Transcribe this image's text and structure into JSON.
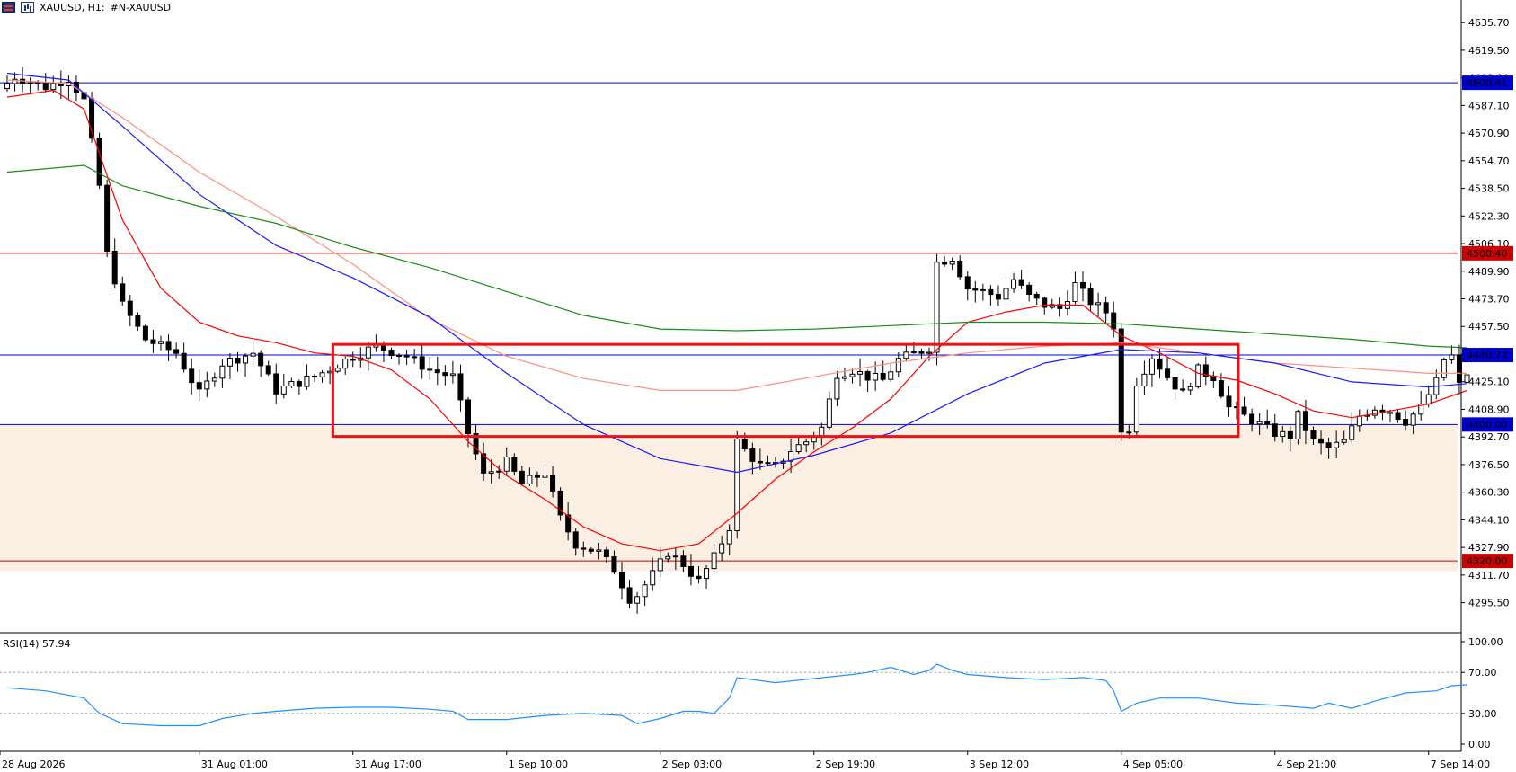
{
  "header": {
    "symbol": "XAUUSD, H1:",
    "description": "#N-XAUUSD"
  },
  "icons": [
    "symbol-flag-icon",
    "chart-type-icon"
  ],
  "colors": {
    "candle_up": "#ffffff",
    "candle_down": "#000000",
    "ma_red": "#ff0000",
    "ma_salmon": "#ff8f7a",
    "ma_blue": "#1a1aff",
    "ma_green": "#1a8c1a",
    "hline_blue": "#0000cc",
    "hline_red": "#cc0000",
    "zone_fill": "#fbeee3",
    "rect_border": "#ee1111",
    "rsi_line": "#1e90ff"
  },
  "price_axis": {
    "min": 4280,
    "max": 4640,
    "ticks": [
      "4635.70",
      "4619.50",
      "4603.30",
      "4587.10",
      "4570.90",
      "4554.70",
      "4538.50",
      "4522.30",
      "4506.10",
      "4489.90",
      "4473.70",
      "4457.50",
      "4441.30",
      "4425.10",
      "4408.90",
      "4392.70",
      "4376.50",
      "4360.30",
      "4344.10",
      "4327.90",
      "4311.70",
      "4295.50"
    ]
  },
  "levels": [
    {
      "price": 4600.41,
      "label": "4600.41",
      "color": "blue"
    },
    {
      "price": 4500.4,
      "label": "4500.40",
      "color": "red"
    },
    {
      "price": 4440.74,
      "label": "4440.74",
      "color": "blue"
    },
    {
      "price": 4400.0,
      "label": "4400.00",
      "color": "blue"
    },
    {
      "price": 4320.0,
      "label": "4320.00",
      "color": "red"
    }
  ],
  "zone": {
    "low": 4314,
    "high": 4400
  },
  "range_box": {
    "start_bar": 48,
    "end_bar": 220,
    "low": 4393,
    "high": 4447
  },
  "time_axis": [
    {
      "label": "28 Aug 2026",
      "bar": 0
    },
    {
      "label": "31 Aug 01:00",
      "bar": 25
    },
    {
      "label": "31 Aug 17:00",
      "bar": 45
    },
    {
      "label": "1 Sep 10:00",
      "bar": 65
    },
    {
      "label": "2 Sep 03:00",
      "bar": 85
    },
    {
      "label": "2 Sep 19:00",
      "bar": 105
    },
    {
      "label": "3 Sep 12:00",
      "bar": 125
    },
    {
      "label": "4 Sep 05:00",
      "bar": 145
    },
    {
      "label": "4 Sep 21:00",
      "bar": 165
    },
    {
      "label": "7 Sep 14:00",
      "bar": 185
    }
  ],
  "rsi": {
    "label": "RSI(14) 57.94",
    "ticks": [
      "100.00",
      "70.00",
      "30.00",
      "0.00"
    ],
    "levels": [
      70,
      30
    ]
  },
  "chart_data": {
    "type": "candlestick",
    "title": "XAUUSD, H1:",
    "ylim": [
      4280,
      4640
    ],
    "key_points": [
      [
        0,
        4600
      ],
      [
        1,
        4604
      ],
      [
        5,
        4598
      ],
      [
        8,
        4603
      ],
      [
        10,
        4590
      ],
      [
        12,
        4540
      ],
      [
        13,
        4500
      ],
      [
        15,
        4470
      ],
      [
        18,
        4450
      ],
      [
        22,
        4442
      ],
      [
        25,
        4418
      ],
      [
        28,
        4436
      ],
      [
        32,
        4442
      ],
      [
        35,
        4420
      ],
      [
        40,
        4428
      ],
      [
        45,
        4440
      ],
      [
        48,
        4446
      ],
      [
        52,
        4440
      ],
      [
        55,
        4432
      ],
      [
        58,
        4428
      ],
      [
        60,
        4395
      ],
      [
        62,
        4370
      ],
      [
        65,
        4378
      ],
      [
        67,
        4365
      ],
      [
        70,
        4372
      ],
      [
        72,
        4345
      ],
      [
        74,
        4330
      ],
      [
        77,
        4325
      ],
      [
        79,
        4315
      ],
      [
        81,
        4298
      ],
      [
        82,
        4300
      ],
      [
        84,
        4312
      ],
      [
        86,
        4325
      ],
      [
        88,
        4318
      ],
      [
        90,
        4308
      ],
      [
        92,
        4322
      ],
      [
        94,
        4340
      ],
      [
        95,
        4390
      ],
      [
        96,
        4385
      ],
      [
        98,
        4376
      ],
      [
        100,
        4375
      ],
      [
        102,
        4385
      ],
      [
        104,
        4390
      ],
      [
        106,
        4398
      ],
      [
        108,
        4430
      ],
      [
        110,
        4432
      ],
      [
        112,
        4428
      ],
      [
        114,
        4426
      ],
      [
        116,
        4438
      ],
      [
        120,
        4445
      ],
      [
        121,
        4495
      ],
      [
        123,
        4498
      ],
      [
        125,
        4480
      ],
      [
        127,
        4478
      ],
      [
        129,
        4475
      ],
      [
        131,
        4485
      ],
      [
        133,
        4475
      ],
      [
        135,
        4470
      ],
      [
        137,
        4468
      ],
      [
        139,
        4482
      ],
      [
        141,
        4472
      ],
      [
        143,
        4466
      ],
      [
        144,
        4458
      ],
      [
        145,
        4395
      ],
      [
        146,
        4398
      ],
      [
        147,
        4425
      ],
      [
        149,
        4440
      ],
      [
        151,
        4428
      ],
      [
        153,
        4418
      ],
      [
        155,
        4432
      ],
      [
        157,
        4428
      ],
      [
        159,
        4410
      ],
      [
        161,
        4405
      ],
      [
        163,
        4400
      ],
      [
        165,
        4395
      ],
      [
        167,
        4393
      ],
      [
        168,
        4405
      ],
      [
        170,
        4390
      ],
      [
        172,
        4386
      ],
      [
        174,
        4390
      ],
      [
        176,
        4405
      ],
      [
        178,
        4410
      ],
      [
        180,
        4408
      ],
      [
        182,
        4402
      ],
      [
        184,
        4410
      ],
      [
        186,
        4425
      ],
      [
        187,
        4438
      ],
      [
        188,
        4440
      ],
      [
        189,
        4423
      ],
      [
        190,
        4430
      ]
    ],
    "moving_averages": [
      {
        "color": "red",
        "points": [
          [
            0,
            4592
          ],
          [
            6,
            4596
          ],
          [
            10,
            4585
          ],
          [
            15,
            4520
          ],
          [
            20,
            4480
          ],
          [
            25,
            4460
          ],
          [
            30,
            4452
          ],
          [
            35,
            4448
          ],
          [
            40,
            4442
          ],
          [
            45,
            4440
          ],
          [
            50,
            4432
          ],
          [
            55,
            4415
          ],
          [
            60,
            4390
          ],
          [
            65,
            4370
          ],
          [
            70,
            4356
          ],
          [
            75,
            4340
          ],
          [
            80,
            4330
          ],
          [
            85,
            4326
          ],
          [
            90,
            4330
          ],
          [
            95,
            4348
          ],
          [
            100,
            4368
          ],
          [
            105,
            4384
          ],
          [
            110,
            4398
          ],
          [
            115,
            4415
          ],
          [
            120,
            4440
          ],
          [
            125,
            4460
          ],
          [
            130,
            4466
          ],
          [
            135,
            4470
          ],
          [
            140,
            4470
          ],
          [
            145,
            4452
          ],
          [
            150,
            4442
          ],
          [
            155,
            4430
          ],
          [
            160,
            4426
          ],
          [
            165,
            4418
          ],
          [
            170,
            4408
          ],
          [
            175,
            4404
          ],
          [
            180,
            4408
          ],
          [
            185,
            4412
          ],
          [
            190,
            4420
          ]
        ]
      },
      {
        "color": "salmon",
        "points": [
          [
            0,
            4602
          ],
          [
            8,
            4600
          ],
          [
            15,
            4580
          ],
          [
            25,
            4548
          ],
          [
            35,
            4522
          ],
          [
            45,
            4494
          ],
          [
            55,
            4462
          ],
          [
            65,
            4440
          ],
          [
            75,
            4427
          ],
          [
            85,
            4420
          ],
          [
            95,
            4420
          ],
          [
            105,
            4428
          ],
          [
            115,
            4436
          ],
          [
            125,
            4442
          ],
          [
            135,
            4446
          ],
          [
            145,
            4448
          ],
          [
            155,
            4442
          ],
          [
            165,
            4436
          ],
          [
            175,
            4433
          ],
          [
            185,
            4430
          ],
          [
            190,
            4430
          ]
        ]
      },
      {
        "color": "blue",
        "points": [
          [
            0,
            4606
          ],
          [
            8,
            4602
          ],
          [
            15,
            4575
          ],
          [
            25,
            4535
          ],
          [
            35,
            4505
          ],
          [
            45,
            4486
          ],
          [
            55,
            4463
          ],
          [
            65,
            4430
          ],
          [
            75,
            4400
          ],
          [
            85,
            4380
          ],
          [
            95,
            4372
          ],
          [
            105,
            4382
          ],
          [
            115,
            4395
          ],
          [
            125,
            4418
          ],
          [
            135,
            4436
          ],
          [
            145,
            4444
          ],
          [
            155,
            4442
          ],
          [
            165,
            4436
          ],
          [
            175,
            4425
          ],
          [
            185,
            4422
          ],
          [
            190,
            4424
          ]
        ]
      },
      {
        "color": "green",
        "points": [
          [
            0,
            4548
          ],
          [
            10,
            4552
          ],
          [
            15,
            4540
          ],
          [
            25,
            4528
          ],
          [
            35,
            4518
          ],
          [
            45,
            4504
          ],
          [
            55,
            4492
          ],
          [
            65,
            4478
          ],
          [
            75,
            4464
          ],
          [
            85,
            4456
          ],
          [
            95,
            4455
          ],
          [
            105,
            4456
          ],
          [
            115,
            4458
          ],
          [
            125,
            4460
          ],
          [
            135,
            4460
          ],
          [
            145,
            4459
          ],
          [
            155,
            4456
          ],
          [
            165,
            4453
          ],
          [
            175,
            4450
          ],
          [
            185,
            4446
          ],
          [
            190,
            4445
          ]
        ]
      }
    ]
  },
  "rsi_data": {
    "points": [
      [
        0,
        55
      ],
      [
        5,
        52
      ],
      [
        10,
        45
      ],
      [
        12,
        30
      ],
      [
        15,
        20
      ],
      [
        20,
        18
      ],
      [
        25,
        18
      ],
      [
        28,
        25
      ],
      [
        32,
        30
      ],
      [
        35,
        32
      ],
      [
        40,
        35
      ],
      [
        45,
        36
      ],
      [
        50,
        36
      ],
      [
        55,
        34
      ],
      [
        58,
        32
      ],
      [
        60,
        24
      ],
      [
        65,
        24
      ],
      [
        70,
        28
      ],
      [
        75,
        30
      ],
      [
        80,
        28
      ],
      [
        82,
        20
      ],
      [
        85,
        25
      ],
      [
        88,
        32
      ],
      [
        90,
        32
      ],
      [
        92,
        30
      ],
      [
        94,
        45
      ],
      [
        95,
        65
      ],
      [
        100,
        60
      ],
      [
        105,
        64
      ],
      [
        110,
        68
      ],
      [
        112,
        70
      ],
      [
        115,
        75
      ],
      [
        118,
        68
      ],
      [
        120,
        72
      ],
      [
        121,
        78
      ],
      [
        123,
        72
      ],
      [
        125,
        68
      ],
      [
        130,
        65
      ],
      [
        135,
        63
      ],
      [
        140,
        65
      ],
      [
        143,
        62
      ],
      [
        144,
        52
      ],
      [
        145,
        32
      ],
      [
        147,
        40
      ],
      [
        150,
        45
      ],
      [
        155,
        45
      ],
      [
        160,
        40
      ],
      [
        165,
        38
      ],
      [
        170,
        35
      ],
      [
        172,
        40
      ],
      [
        175,
        35
      ],
      [
        178,
        42
      ],
      [
        182,
        50
      ],
      [
        186,
        52
      ],
      [
        188,
        57
      ],
      [
        190,
        57.94
      ]
    ]
  }
}
